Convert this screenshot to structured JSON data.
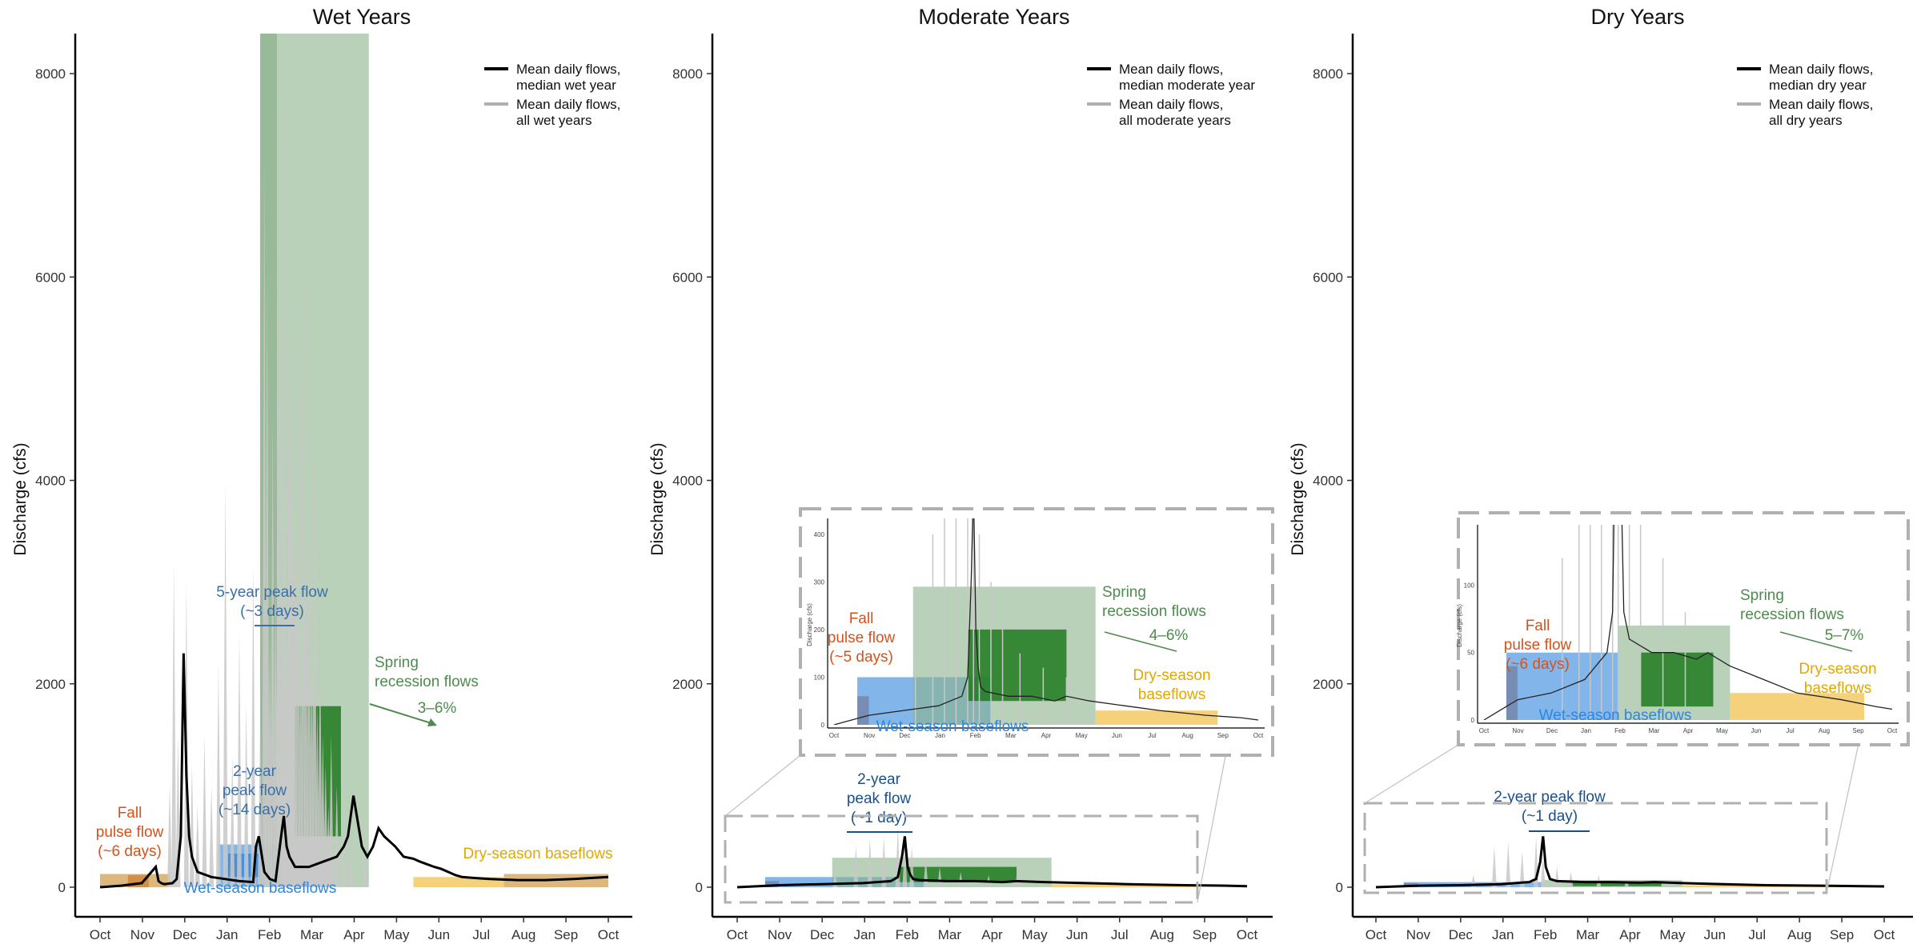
{
  "chart_data": [
    {
      "type": "line",
      "title": "Wet Years",
      "ylabel": "Discharge (cfs)",
      "ylim": [
        0,
        8400
      ],
      "yticks": [
        0,
        2000,
        4000,
        6000,
        8000
      ],
      "yticklabels": [
        "0",
        "2000",
        "4000",
        "6000",
        "8000"
      ],
      "xlabels": [
        "Oct",
        "Nov",
        "Dec",
        "Jan",
        "Feb",
        "Mar",
        "Apr",
        "May",
        "Jun",
        "Jul",
        "Aug",
        "Sep",
        "Oct"
      ],
      "legend": [
        "Mean daily flows,\nmedian wet year",
        "Mean daily flows,\nall wet years"
      ],
      "legend_position": "top-right",
      "grid": false,
      "series": [
        {
          "name": "Mean daily flows, median wet year",
          "color": "#000000",
          "x": [
            0,
            15,
            30,
            40,
            42,
            44,
            46,
            52,
            55,
            58,
            60,
            62,
            64,
            66,
            70,
            80,
            90,
            95,
            100,
            110,
            112,
            114,
            118,
            122,
            126,
            130,
            132,
            134,
            136,
            140,
            150,
            160,
            170,
            175,
            178,
            182,
            188,
            192,
            196,
            200,
            204,
            208,
            212,
            218,
            225,
            230,
            240,
            245,
            250,
            255,
            260,
            270,
            280,
            300,
            320,
            340,
            365
          ],
          "y": [
            0,
            15,
            40,
            200,
            60,
            40,
            30,
            40,
            80,
            500,
            2300,
            1100,
            500,
            300,
            150,
            100,
            80,
            70,
            60,
            50,
            400,
            500,
            150,
            80,
            60,
            500,
            700,
            400,
            300,
            200,
            200,
            250,
            300,
            400,
            500,
            900,
            400,
            300,
            400,
            580,
            500,
            450,
            400,
            300,
            280,
            250,
            200,
            180,
            150,
            120,
            100,
            90,
            80,
            70,
            70,
            80,
            100
          ]
        },
        {
          "name": "Mean daily flows, all wet years",
          "color": "#c8c8c8",
          "spikes_x": [
            50,
            53,
            56,
            62,
            66,
            70,
            75,
            80,
            85,
            90,
            95,
            100,
            105,
            110,
            115,
            118,
            120,
            122,
            124,
            126,
            128,
            130,
            132,
            134,
            136,
            138,
            140,
            142,
            144,
            146,
            148,
            150,
            152,
            154,
            156,
            158,
            160,
            162,
            164,
            166,
            170,
            175,
            180,
            190
          ],
          "spikes_y": [
            1000,
            3200,
            1500,
            3000,
            1200,
            800,
            1500,
            1000,
            2200,
            4000,
            1300,
            2500,
            1800,
            3200,
            1600,
            7200,
            6000,
            2500,
            4700,
            3000,
            6300,
            2800,
            8200,
            2700,
            7200,
            5000,
            3500,
            5400,
            2800,
            7200,
            3000,
            4200,
            2600,
            4800,
            1800,
            2400,
            1500,
            1200,
            800,
            1500,
            1000,
            700,
            500,
            400
          ]
        }
      ],
      "components": [
        {
          "name": "Fall pulse flow",
          "color": "#d4531c",
          "box": {
            "x": [
              20,
              35
            ],
            "y": [
              0,
              120
            ]
          }
        },
        {
          "name": "Wet-season baseflows",
          "color": "#2e86de",
          "box": {
            "x": [
              85,
              130
            ],
            "y": [
              0,
              420
            ]
          }
        },
        {
          "name": "2-year peak flow",
          "color": "#1f78d1",
          "box": {
            "x": [
              92,
              125
            ],
            "y": [
              100,
              330
            ]
          }
        },
        {
          "name": "5-year peak flow",
          "color": "#6a9a6a",
          "box": {
            "x": [
              115,
              127
            ],
            "y": [
              0,
              8400
            ]
          }
        },
        {
          "name": "Spring recession flows",
          "color": "#8bb08b",
          "box": {
            "x": [
              115,
              193
            ],
            "y": [
              0,
              8400
            ]
          }
        },
        {
          "name": "Spring recession (core)",
          "color": "#1e7a1e",
          "box": {
            "x": [
              140,
              173
            ],
            "y": [
              500,
              1780
            ]
          }
        },
        {
          "name": "Dry-season baseflows",
          "color": "#f0b323",
          "box": {
            "x": [
              225,
              290
            ],
            "y": [
              0,
              100
            ]
          }
        },
        {
          "name": "Dry-season baseflows (late)",
          "color": "#c4892a",
          "box": {
            "x": [
              290,
              365
            ],
            "y": [
              0,
              130
            ]
          }
        },
        {
          "name": "Fall baseflow (early)",
          "color": "#c4892a",
          "box": {
            "x": [
              0,
              50
            ],
            "y": [
              0,
              130
            ]
          }
        }
      ],
      "annotations": [
        {
          "text": "Fall\npulse flow\n(~6 days)",
          "color": "#d4531c"
        },
        {
          "text": "5-year peak flow\n(~3 days)",
          "color": "#3a6fa8"
        },
        {
          "text": "2-year\npeak flow\n(~14 days)",
          "color": "#3a6fa8"
        },
        {
          "text": "Spring\nrecession flows",
          "color": "#4f8a4f"
        },
        {
          "text": "3–6%",
          "color": "#4f8a4f"
        },
        {
          "text": "Dry-season baseflows",
          "color": "#e0a800"
        },
        {
          "text": "Wet-season baseflows",
          "color": "#2e86de"
        }
      ]
    },
    {
      "type": "line",
      "title": "Moderate Years",
      "ylabel": "Discharge (cfs)",
      "ylim": [
        0,
        8400
      ],
      "yticks": [
        0,
        2000,
        4000,
        6000,
        8000
      ],
      "yticklabels": [
        "0",
        "2000",
        "4000",
        "6000",
        "8000"
      ],
      "xlabels": [
        "Oct",
        "Nov",
        "Dec",
        "Jan",
        "Feb",
        "Mar",
        "Apr",
        "May",
        "Jun",
        "Jul",
        "Aug",
        "Sep",
        "Oct"
      ],
      "legend": [
        "Mean daily flows,\nmedian moderate year",
        "Mean daily flows,\nall moderate years"
      ],
      "legend_position": "top-right",
      "grid": false,
      "series": [
        {
          "name": "Mean daily flows, median moderate year",
          "color": "#000000",
          "x": [
            0,
            30,
            60,
            90,
            100,
            110,
            115,
            118,
            120,
            122,
            124,
            126,
            130,
            150,
            170,
            190,
            200,
            220,
            250,
            280,
            320,
            350,
            365
          ],
          "y": [
            0,
            20,
            30,
            40,
            50,
            60,
            100,
            300,
            500,
            200,
            120,
            80,
            70,
            60,
            60,
            50,
            60,
            50,
            40,
            30,
            20,
            15,
            10
          ]
        },
        {
          "name": "Mean daily flows, all moderate years",
          "color": "#c8c8c8",
          "spikes_x": [
            70,
            85,
            95,
            105,
            115,
            120,
            125,
            135,
            145,
            160,
            180,
            200
          ],
          "spikes_y": [
            150,
            400,
            480,
            500,
            600,
            450,
            400,
            300,
            200,
            150,
            120,
            100
          ]
        }
      ],
      "components": [
        {
          "name": "Fall pulse flow",
          "color": "#d4531c",
          "box": {
            "x": [
              20,
              30
            ],
            "y": [
              0,
              60
            ]
          }
        },
        {
          "name": "Wet-season baseflows",
          "color": "#2e86de",
          "box": {
            "x": [
              20,
              135
            ],
            "y": [
              0,
              100
            ]
          }
        },
        {
          "name": "Spring recession flows",
          "color": "#8bb08b",
          "box": {
            "x": [
              68,
              225
            ],
            "y": [
              0,
              290
            ]
          }
        },
        {
          "name": "Spring recession (core)",
          "color": "#1e7a1e",
          "box": {
            "x": [
              115,
              200
            ],
            "y": [
              50,
              200
            ]
          }
        },
        {
          "name": "Dry-season baseflows",
          "color": "#f0b323",
          "box": {
            "x": [
              225,
              330
            ],
            "y": [
              0,
              30
            ]
          }
        }
      ],
      "inset": {
        "ylim": [
          0,
          420
        ],
        "yticks": [
          0,
          100,
          200,
          300,
          400
        ],
        "ylabel": "Discharge (cfs)",
        "xlabels": [
          "Oct",
          "Nov",
          "Dec",
          "Jan",
          "Feb",
          "Mar",
          "Apr",
          "May",
          "Jun",
          "Jul",
          "Aug",
          "Sep",
          "Oct"
        ],
        "annotations": [
          {
            "text": "Fall\npulse flow\n(~5 days)",
            "color": "#d4531c"
          },
          {
            "text": "Spring\nrecession flows",
            "color": "#4f8a4f"
          },
          {
            "text": "4–6%",
            "color": "#4f8a4f"
          },
          {
            "text": "Dry-season\nbaseflows",
            "color": "#e0a800"
          },
          {
            "text": "Wet-season baseflows",
            "color": "#2e86de"
          }
        ]
      },
      "annotations": [
        {
          "text": "2-year\npeak flow\n(~1 day)",
          "color": "#1b4f8a"
        }
      ]
    },
    {
      "type": "line",
      "title": "Dry Years",
      "ylabel": "Discharge (cfs)",
      "ylim": [
        0,
        8400
      ],
      "yticks": [
        0,
        2000,
        4000,
        6000,
        8000
      ],
      "yticklabels": [
        "0",
        "2000",
        "4000",
        "6000",
        "8000"
      ],
      "xlabels": [
        "Oct",
        "Nov",
        "Dec",
        "Jan",
        "Feb",
        "Mar",
        "Apr",
        "May",
        "Jun",
        "Jul",
        "Aug",
        "Sep",
        "Oct"
      ],
      "legend": [
        "Mean daily flows,\nmedian dry year",
        "Mean daily flows,\nall dry years"
      ],
      "legend_position": "top-right",
      "grid": false,
      "series": [
        {
          "name": "Mean daily flows, median dry year",
          "color": "#000000",
          "x": [
            0,
            30,
            60,
            90,
            100,
            110,
            115,
            118,
            120,
            122,
            125,
            130,
            150,
            170,
            190,
            200,
            220,
            250,
            280,
            320,
            350,
            365
          ],
          "y": [
            0,
            15,
            20,
            30,
            40,
            50,
            80,
            250,
            500,
            200,
            80,
            60,
            50,
            50,
            45,
            50,
            40,
            30,
            20,
            15,
            10,
            8
          ]
        },
        {
          "name": "Mean daily flows, all dry years",
          "color": "#c8c8c8",
          "spikes_x": [
            70,
            85,
            95,
            105,
            115,
            120,
            130,
            140,
            160,
            180
          ],
          "spikes_y": [
            120,
            400,
            450,
            350,
            500,
            300,
            200,
            150,
            120,
            80
          ]
        }
      ],
      "components": [
        {
          "name": "Fall pulse flow",
          "color": "#d4531c",
          "box": {
            "x": [
              20,
              30
            ],
            "y": [
              0,
              40
            ]
          }
        },
        {
          "name": "Wet-season baseflows",
          "color": "#2e86de",
          "box": {
            "x": [
              20,
              120
            ],
            "y": [
              0,
              50
            ]
          }
        },
        {
          "name": "Spring recession flows",
          "color": "#8bb08b",
          "box": {
            "x": [
              120,
              220
            ],
            "y": [
              0,
              70
            ]
          }
        },
        {
          "name": "Spring recession (core)",
          "color": "#1e7a1e",
          "box": {
            "x": [
              140,
              205
            ],
            "y": [
              10,
              50
            ]
          }
        },
        {
          "name": "Dry-season baseflows",
          "color": "#f0b323",
          "box": {
            "x": [
              220,
              340
            ],
            "y": [
              0,
              20
            ]
          }
        }
      ],
      "inset": {
        "ylim": [
          0,
          140
        ],
        "yticks": [
          0,
          50,
          100
        ],
        "ylabel": "Discharge (cfs)",
        "xlabels": [
          "Oct",
          "Nov",
          "Dec",
          "Jan",
          "Feb",
          "Mar",
          "Apr",
          "May",
          "Jun",
          "Jul",
          "Aug",
          "Sep",
          "Oct"
        ],
        "annotations": [
          {
            "text": "Fall\npulse flow\n(~6 days)",
            "color": "#d4531c"
          },
          {
            "text": "Spring\nrecession flows",
            "color": "#4f8a4f"
          },
          {
            "text": "5–7%",
            "color": "#4f8a4f"
          },
          {
            "text": "Dry-season\nbaseflows",
            "color": "#e0a800"
          },
          {
            "text": "Wet-season baseflows",
            "color": "#2e86de"
          }
        ]
      },
      "annotations": [
        {
          "text": "2-year peak flow\n(~1 day)",
          "color": "#1b4f8a"
        }
      ]
    }
  ]
}
